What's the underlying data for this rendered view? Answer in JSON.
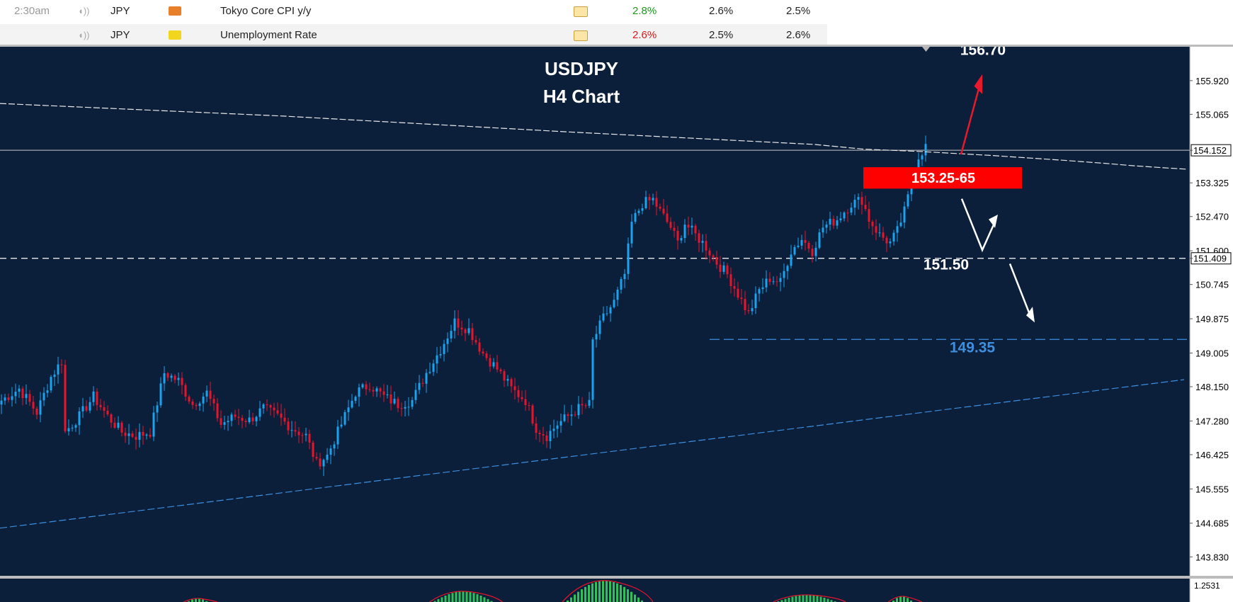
{
  "calendar": {
    "rows": [
      {
        "time": "2:30am",
        "currency": "JPY",
        "flag_color": "#e87f2b",
        "event": "Tokyo Core CPI y/y",
        "actual": "2.8%",
        "actual_color": "#1c9a1c",
        "forecast": "2.6%",
        "previous": "2.5%"
      },
      {
        "time": "",
        "currency": "JPY",
        "flag_color": "#f2d61d",
        "event": "Unemployment Rate",
        "actual": "2.6%",
        "actual_color": "#d91b1b",
        "forecast": "2.5%",
        "previous": "2.6%"
      }
    ]
  },
  "colors": {
    "background": "#0b1e3a",
    "bull": "#1aa3ee",
    "bear": "#e8142a",
    "up_arrow": "#e8192c",
    "channel": "#3d8fe0",
    "text": "#ffffff",
    "box": "#ff0000"
  },
  "chart_data": {
    "type": "candlestick",
    "title": "USDJPY",
    "subtitle": "H4 Chart",
    "y_ticks": [
      155.92,
      155.065,
      154.152,
      153.325,
      152.47,
      151.6,
      151.409,
      150.745,
      149.875,
      149.005,
      148.15,
      147.28,
      146.425,
      145.555,
      144.685,
      143.83
    ],
    "y_tick_labels": [
      "155.920",
      "155.065",
      "154.152",
      "153.325",
      "152.470",
      "151.600",
      "151.409",
      "150.745",
      "149.875",
      "149.005",
      "148.150",
      "147.280",
      "146.425",
      "145.555",
      "144.685",
      "143.830"
    ],
    "ylim": [
      143.35,
      156.78
    ],
    "current_price": "154.152",
    "marked_price": "151.409",
    "anchors": [
      [
        0,
        147.8
      ],
      [
        5,
        148.1
      ],
      [
        10,
        147.5
      ],
      [
        14,
        148.4
      ],
      [
        17,
        148.8
      ],
      [
        18,
        147.0
      ],
      [
        22,
        147.4
      ],
      [
        26,
        147.9
      ],
      [
        30,
        147.4
      ],
      [
        34,
        147.0
      ],
      [
        38,
        146.9
      ],
      [
        42,
        147.0
      ],
      [
        46,
        148.5
      ],
      [
        50,
        148.3
      ],
      [
        54,
        147.7
      ],
      [
        58,
        148.0
      ],
      [
        62,
        147.2
      ],
      [
        66,
        147.4
      ],
      [
        70,
        147.3
      ],
      [
        74,
        147.6
      ],
      [
        78,
        147.4
      ],
      [
        82,
        147.1
      ],
      [
        86,
        146.9
      ],
      [
        89,
        146.2
      ],
      [
        92,
        146.4
      ],
      [
        96,
        147.2
      ],
      [
        100,
        148.0
      ],
      [
        104,
        148.2
      ],
      [
        108,
        147.9
      ],
      [
        112,
        147.7
      ],
      [
        116,
        147.8
      ],
      [
        120,
        148.5
      ],
      [
        124,
        149.1
      ],
      [
        128,
        149.8
      ],
      [
        132,
        149.6
      ],
      [
        136,
        149.0
      ],
      [
        140,
        148.6
      ],
      [
        144,
        148.1
      ],
      [
        148,
        147.8
      ],
      [
        151,
        147.1
      ],
      [
        154,
        146.9
      ],
      [
        157,
        147.2
      ],
      [
        160,
        147.4
      ],
      [
        163,
        147.6
      ],
      [
        166,
        147.7
      ],
      [
        167,
        149.3
      ],
      [
        170,
        149.9
      ],
      [
        173,
        150.3
      ],
      [
        176,
        151.0
      ],
      [
        178,
        152.3
      ],
      [
        181,
        152.8
      ],
      [
        184,
        152.9
      ],
      [
        186,
        152.6
      ],
      [
        189,
        152.2
      ],
      [
        191,
        151.8
      ],
      [
        193,
        152.3
      ],
      [
        196,
        152.0
      ],
      [
        199,
        151.7
      ],
      [
        202,
        151.3
      ],
      [
        205,
        151.0
      ],
      [
        208,
        150.5
      ],
      [
        211,
        150.0
      ],
      [
        214,
        150.6
      ],
      [
        217,
        150.9
      ],
      [
        220,
        150.8
      ],
      [
        223,
        151.6
      ],
      [
        226,
        151.9
      ],
      [
        229,
        151.6
      ],
      [
        232,
        152.2
      ],
      [
        236,
        152.4
      ],
      [
        240,
        152.8
      ],
      [
        243,
        152.9
      ],
      [
        245,
        152.4
      ],
      [
        248,
        152.0
      ],
      [
        251,
        151.8
      ],
      [
        253,
        152.1
      ],
      [
        255,
        152.6
      ],
      [
        257,
        153.3
      ],
      [
        259,
        154.0
      ],
      [
        261,
        154.25
      ]
    ],
    "levels": [
      {
        "label": "156.70",
        "value": 156.7
      },
      {
        "label": "153.25-65",
        "low": 153.25,
        "high": 153.65
      },
      {
        "label": "151.50",
        "value": 151.5
      },
      {
        "label": "149.35",
        "value": 149.35
      }
    ],
    "indicator_ticks": [
      "1.2531"
    ]
  }
}
